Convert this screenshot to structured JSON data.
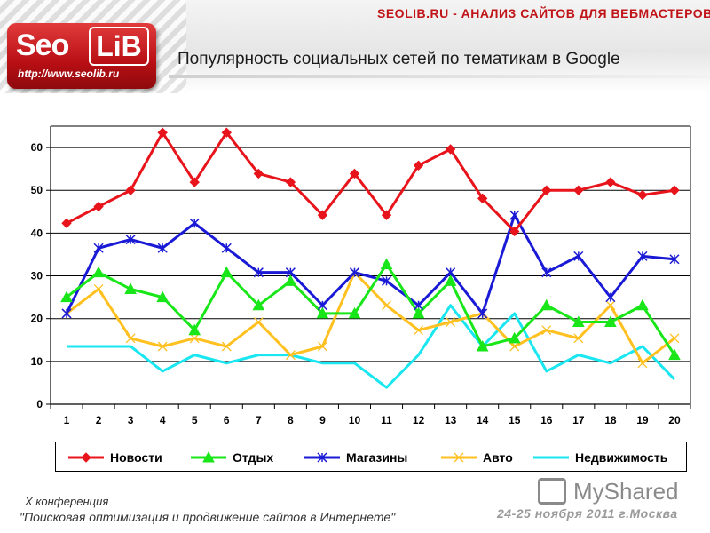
{
  "header": {
    "site_title": "SEOLIB.RU - АНАЛИЗ САЙТОВ ДЛЯ ВЕБМАСТЕРОВ",
    "logo_seo": "Seo",
    "logo_lib": "LiB",
    "logo_url": "http://www.seolib.ru",
    "slide_title": "Популярность социальных сетей по тематикам в Google"
  },
  "footer": {
    "line1": "X конференция",
    "line2": "\"Поисковая оптимизация и продвижение сайтов в Интернете\"",
    "date": "24-25 ноября 2011 г.Москва",
    "watermark": "MyShared"
  },
  "chart_data": {
    "type": "line",
    "title": "",
    "xlabel": "",
    "ylabel": "",
    "x": [
      1,
      2,
      3,
      4,
      5,
      6,
      7,
      8,
      9,
      10,
      11,
      12,
      13,
      14,
      15,
      16,
      17,
      18,
      19,
      20
    ],
    "ylim": [
      0,
      65
    ],
    "yticks": [
      0,
      10,
      20,
      30,
      40,
      50,
      60
    ],
    "grid": true,
    "legend_position": "bottom",
    "series": [
      {
        "name": "Новости",
        "color": "#e8141b",
        "marker": "diamond",
        "values": [
          42.3,
          46.2,
          50,
          63.5,
          51.9,
          63.5,
          53.9,
          51.9,
          44.2,
          53.9,
          44.2,
          55.8,
          59.6,
          48.1,
          40.4,
          50,
          50,
          51.9,
          48.9,
          50
        ]
      },
      {
        "name": "Отдых",
        "color": "#19e619",
        "marker": "triangle",
        "values": [
          25,
          30.8,
          26.9,
          25,
          17.3,
          30.8,
          23.1,
          28.8,
          21.2,
          21.2,
          32.7,
          21.2,
          28.8,
          13.5,
          15.4,
          23.1,
          19.2,
          19.2,
          23.1,
          11.5
        ]
      },
      {
        "name": "Магазины",
        "color": "#1a1ad6",
        "marker": "asterisk",
        "values": [
          21.2,
          36.5,
          38.5,
          36.5,
          42.3,
          36.5,
          30.8,
          30.8,
          23.1,
          30.8,
          28.8,
          23.1,
          30.8,
          21.2,
          44.2,
          30.8,
          34.6,
          25,
          34.6,
          33.9
        ]
      },
      {
        "name": "Авто",
        "color": "#ffc020",
        "marker": "x",
        "values": [
          21.2,
          26.9,
          15.4,
          13.5,
          15.4,
          13.5,
          19.2,
          11.5,
          13.5,
          30.8,
          23.1,
          17.3,
          19.2,
          21.2,
          13.5,
          17.3,
          15.4,
          23.1,
          9.6,
          15.4
        ]
      },
      {
        "name": "Недвижимость",
        "color": "#19e6f0",
        "marker": "none",
        "values": [
          13.5,
          13.5,
          13.5,
          7.7,
          11.5,
          9.6,
          11.5,
          11.5,
          9.6,
          9.6,
          3.9,
          11.5,
          23.1,
          13.5,
          21.2,
          7.7,
          11.5,
          9.6,
          13.5,
          5.8
        ]
      }
    ]
  }
}
